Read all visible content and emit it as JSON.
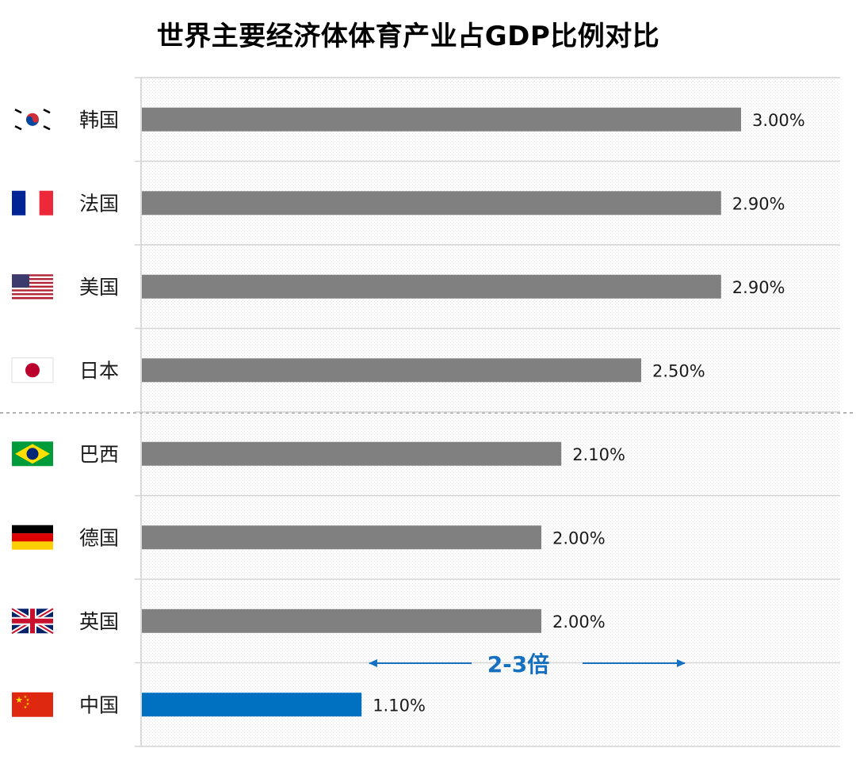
{
  "title": "世界主要经济体体育产业占GDP比例对比",
  "chart_data": {
    "type": "bar",
    "orientation": "horizontal",
    "title": "世界主要经济体体育产业占GDP比例对比",
    "xlabel": "",
    "ylabel": "",
    "unit": "%",
    "categories": [
      "韩国",
      "法国",
      "美国",
      "日本",
      "巴西",
      "德国",
      "英国",
      "中国"
    ],
    "values": [
      3.0,
      2.9,
      2.9,
      2.5,
      2.1,
      2.0,
      2.0,
      1.1
    ],
    "value_labels": [
      "3.00%",
      "2.90%",
      "2.90%",
      "2.50%",
      "2.10%",
      "2.00%",
      "2.00%",
      "1.10%"
    ],
    "flags": [
      "korea-flag",
      "france-flag",
      "usa-flag",
      "japan-flag",
      "brazil-flag",
      "germany-flag",
      "uk-flag",
      "china-flag"
    ],
    "bar_color": "#808080",
    "highlight_color": "#0070c0",
    "highlight_index": 7,
    "xlim": [
      0,
      3.5
    ],
    "grid": true,
    "annotation": {
      "text": "2-3倍",
      "color": "#1570bf"
    }
  }
}
